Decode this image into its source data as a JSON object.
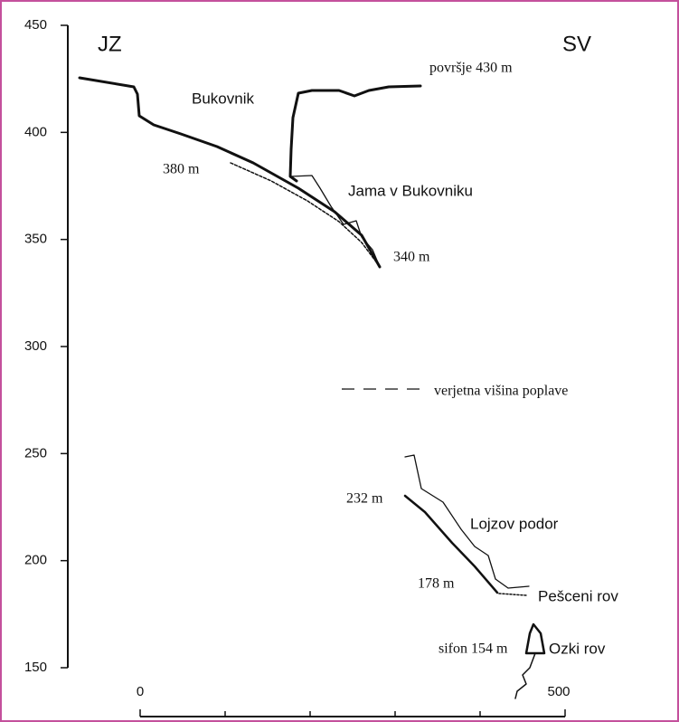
{
  "y_axis": {
    "ticks": [
      450,
      400,
      350,
      300,
      250,
      200,
      150
    ]
  },
  "labels": {
    "left_side": "JZ",
    "right_side": "SV",
    "hill": "Bukovnik",
    "surface": "površje 430 m",
    "upper_entrance": "380 m",
    "upper_cave": "Jama v Bukovniku",
    "upper_bottom": "340 m",
    "flood_line": "verjetna višina poplave",
    "lower_entrance": "232 m",
    "lower_cave": "Lojzov podor",
    "lower_bottom": "178 m",
    "sand_passage": "Pešceni rov",
    "siphon": "sifon 154 m",
    "narrow_passage": "Ozki rov"
  },
  "scale": {
    "start": 0,
    "end": 500
  }
}
